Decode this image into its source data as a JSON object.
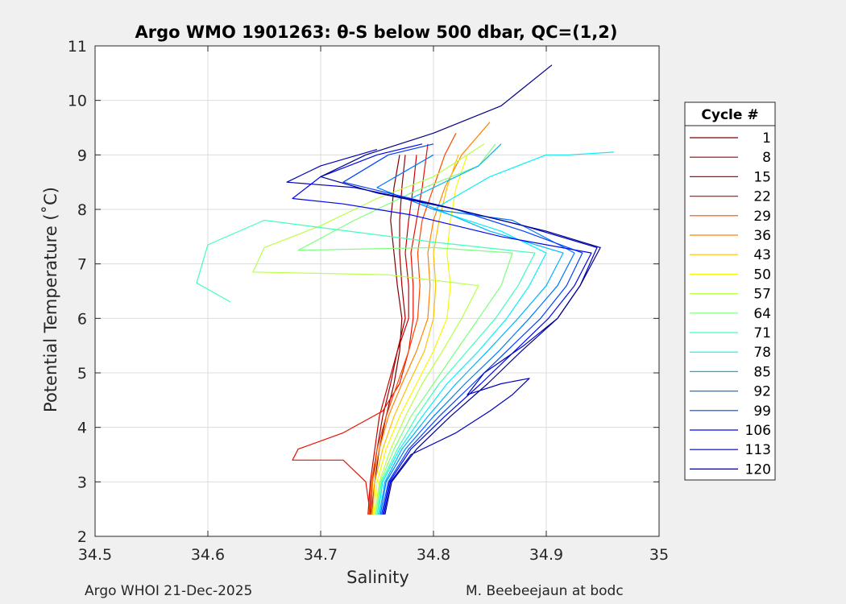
{
  "chart_data": {
    "type": "line",
    "title": "Argo WMO 1901263: θ-S below 500 dbar,  QC=(1,2)",
    "xlabel": "Salinity",
    "ylabel": "Potential Temperature (˚C)",
    "xlim": [
      34.5,
      35
    ],
    "ylim": [
      2,
      11
    ],
    "xticks": [
      "34.5",
      "34.6",
      "34.7",
      "34.8",
      "34.9",
      "35"
    ],
    "yticks": [
      "2",
      "3",
      "4",
      "5",
      "6",
      "7",
      "8",
      "9",
      "10",
      "11"
    ],
    "grid": true,
    "legend": {
      "title": "Cycle #",
      "placement": "right",
      "entries": [
        "1",
        "8",
        "15",
        "22",
        "29",
        "36",
        "43",
        "50",
        "57",
        "64",
        "71",
        "78",
        "85",
        "92",
        "99",
        "106",
        "113",
        "120"
      ],
      "colors": [
        "#800000",
        "#a00000",
        "#c80000",
        "#e81000",
        "#ff4800",
        "#ff8400",
        "#ffc000",
        "#f8f800",
        "#b8ff48",
        "#7cff7c",
        "#40ffb8",
        "#08f0f8",
        "#00b4ff",
        "#0078ff",
        "#0040ff",
        "#0008f0",
        "#0000c0",
        "#000088"
      ]
    },
    "series": [
      {
        "cycle": "1",
        "points": [
          [
            34.745,
            2.4
          ],
          [
            34.748,
            3.0
          ],
          [
            34.752,
            3.6
          ],
          [
            34.758,
            4.2
          ],
          [
            34.765,
            4.8
          ],
          [
            34.77,
            5.4
          ],
          [
            34.772,
            6.0
          ],
          [
            34.768,
            6.6
          ],
          [
            34.765,
            7.2
          ],
          [
            34.762,
            7.8
          ],
          [
            34.765,
            8.4
          ],
          [
            34.77,
            9.0
          ]
        ]
      },
      {
        "cycle": "8",
        "points": [
          [
            34.744,
            2.4
          ],
          [
            34.746,
            3.0
          ],
          [
            34.75,
            3.6
          ],
          [
            34.755,
            4.2
          ],
          [
            34.762,
            4.8
          ],
          [
            34.768,
            5.4
          ],
          [
            34.775,
            6.0
          ],
          [
            34.772,
            6.6
          ],
          [
            34.77,
            7.2
          ],
          [
            34.77,
            7.8
          ],
          [
            34.772,
            8.4
          ],
          [
            34.775,
            9.0
          ]
        ]
      },
      {
        "cycle": "15",
        "points": [
          [
            34.742,
            2.4
          ],
          [
            34.744,
            3.0
          ],
          [
            34.748,
            3.6
          ],
          [
            34.752,
            4.2
          ],
          [
            34.76,
            4.8
          ],
          [
            34.768,
            5.4
          ],
          [
            34.778,
            6.0
          ],
          [
            34.778,
            6.6
          ],
          [
            34.775,
            7.2
          ],
          [
            34.778,
            7.8
          ],
          [
            34.782,
            8.4
          ],
          [
            34.785,
            9.0
          ]
        ]
      },
      {
        "cycle": "22",
        "points": [
          [
            34.744,
            2.4
          ],
          [
            34.74,
            3.0
          ],
          [
            34.72,
            3.4
          ],
          [
            34.675,
            3.4
          ],
          [
            34.68,
            3.6
          ],
          [
            34.72,
            3.9
          ],
          [
            34.755,
            4.3
          ],
          [
            34.77,
            4.8
          ],
          [
            34.778,
            5.4
          ],
          [
            34.782,
            6.0
          ],
          [
            34.782,
            6.6
          ],
          [
            34.78,
            7.2
          ],
          [
            34.785,
            7.8
          ],
          [
            34.79,
            8.4
          ],
          [
            34.795,
            9.2
          ]
        ]
      },
      {
        "cycle": "29",
        "points": [
          [
            34.743,
            2.4
          ],
          [
            34.745,
            3.0
          ],
          [
            34.75,
            3.6
          ],
          [
            34.758,
            4.2
          ],
          [
            34.768,
            4.8
          ],
          [
            34.778,
            5.4
          ],
          [
            34.786,
            6.0
          ],
          [
            34.788,
            6.6
          ],
          [
            34.786,
            7.2
          ],
          [
            34.79,
            7.8
          ],
          [
            34.8,
            8.4
          ],
          [
            34.81,
            9.0
          ],
          [
            34.82,
            9.4
          ]
        ]
      },
      {
        "cycle": "36",
        "points": [
          [
            34.745,
            2.4
          ],
          [
            34.746,
            3.0
          ],
          [
            34.752,
            3.6
          ],
          [
            34.76,
            4.2
          ],
          [
            34.772,
            4.8
          ],
          [
            34.785,
            5.4
          ],
          [
            34.795,
            6.0
          ],
          [
            34.797,
            6.6
          ],
          [
            34.795,
            7.2
          ],
          [
            34.8,
            7.8
          ],
          [
            34.81,
            8.4
          ],
          [
            34.825,
            9.0
          ],
          [
            34.85,
            9.6
          ]
        ]
      },
      {
        "cycle": "43",
        "points": [
          [
            34.746,
            2.4
          ],
          [
            34.748,
            3.0
          ],
          [
            34.755,
            3.6
          ],
          [
            34.765,
            4.2
          ],
          [
            34.778,
            4.8
          ],
          [
            34.792,
            5.4
          ],
          [
            34.8,
            6.0
          ],
          [
            34.802,
            6.6
          ],
          [
            34.8,
            7.2
          ],
          [
            34.805,
            7.8
          ],
          [
            34.812,
            8.4
          ],
          [
            34.822,
            9.0
          ]
        ]
      },
      {
        "cycle": "50",
        "points": [
          [
            34.747,
            2.4
          ],
          [
            34.75,
            3.0
          ],
          [
            34.758,
            3.6
          ],
          [
            34.77,
            4.2
          ],
          [
            34.785,
            4.8
          ],
          [
            34.8,
            5.4
          ],
          [
            34.812,
            6.0
          ],
          [
            34.815,
            6.6
          ],
          [
            34.812,
            7.2
          ],
          [
            34.815,
            7.8
          ],
          [
            34.82,
            8.4
          ],
          [
            34.83,
            9.0
          ]
        ]
      },
      {
        "cycle": "57",
        "points": [
          [
            34.748,
            2.4
          ],
          [
            34.752,
            3.0
          ],
          [
            34.762,
            3.6
          ],
          [
            34.775,
            4.2
          ],
          [
            34.79,
            4.8
          ],
          [
            34.808,
            5.4
          ],
          [
            34.825,
            6.0
          ],
          [
            34.84,
            6.6
          ],
          [
            34.76,
            6.8
          ],
          [
            34.64,
            6.85
          ],
          [
            34.65,
            7.3
          ],
          [
            34.7,
            7.7
          ],
          [
            34.75,
            8.2
          ],
          [
            34.8,
            8.6
          ],
          [
            34.845,
            9.2
          ]
        ]
      },
      {
        "cycle": "64",
        "points": [
          [
            34.749,
            2.4
          ],
          [
            34.753,
            3.0
          ],
          [
            34.765,
            3.6
          ],
          [
            34.78,
            4.2
          ],
          [
            34.8,
            4.8
          ],
          [
            34.82,
            5.4
          ],
          [
            34.84,
            6.0
          ],
          [
            34.86,
            6.6
          ],
          [
            34.87,
            7.2
          ],
          [
            34.8,
            7.3
          ],
          [
            34.68,
            7.25
          ],
          [
            34.73,
            7.8
          ],
          [
            34.78,
            8.3
          ],
          [
            34.84,
            8.8
          ],
          [
            34.855,
            9.2
          ]
        ]
      },
      {
        "cycle": "71",
        "points": [
          [
            34.75,
            2.4
          ],
          [
            34.754,
            3.0
          ],
          [
            34.768,
            3.6
          ],
          [
            34.785,
            4.2
          ],
          [
            34.805,
            4.8
          ],
          [
            34.83,
            5.4
          ],
          [
            34.855,
            6.0
          ],
          [
            34.875,
            6.6
          ],
          [
            34.89,
            7.2
          ],
          [
            34.8,
            7.4
          ],
          [
            34.65,
            7.8
          ],
          [
            34.6,
            7.35
          ],
          [
            34.59,
            6.65
          ],
          [
            34.62,
            6.3
          ]
        ]
      },
      {
        "cycle": "78",
        "points": [
          [
            34.751,
            2.4
          ],
          [
            34.755,
            3.0
          ],
          [
            34.77,
            3.6
          ],
          [
            34.79,
            4.2
          ],
          [
            34.812,
            4.8
          ],
          [
            34.84,
            5.4
          ],
          [
            34.865,
            6.0
          ],
          [
            34.885,
            6.6
          ],
          [
            34.9,
            7.2
          ],
          [
            34.86,
            7.6
          ],
          [
            34.8,
            8.0
          ],
          [
            34.85,
            8.6
          ],
          [
            34.9,
            9.0
          ],
          [
            34.92,
            9.0
          ],
          [
            34.96,
            9.05
          ]
        ]
      },
      {
        "cycle": "85",
        "points": [
          [
            34.752,
            2.4
          ],
          [
            34.757,
            3.0
          ],
          [
            34.772,
            3.6
          ],
          [
            34.795,
            4.2
          ],
          [
            34.82,
            4.8
          ],
          [
            34.848,
            5.4
          ],
          [
            34.875,
            6.0
          ],
          [
            34.9,
            6.6
          ],
          [
            34.915,
            7.2
          ],
          [
            34.85,
            7.6
          ],
          [
            34.78,
            8.2
          ],
          [
            34.84,
            8.8
          ],
          [
            34.86,
            9.2
          ]
        ]
      },
      {
        "cycle": "92",
        "points": [
          [
            34.753,
            2.4
          ],
          [
            34.758,
            3.0
          ],
          [
            34.775,
            3.6
          ],
          [
            34.8,
            4.2
          ],
          [
            34.828,
            4.8
          ],
          [
            34.858,
            5.4
          ],
          [
            34.885,
            6.0
          ],
          [
            34.91,
            6.6
          ],
          [
            34.925,
            7.2
          ],
          [
            34.87,
            7.8
          ],
          [
            34.8,
            8.0
          ],
          [
            34.75,
            8.4
          ],
          [
            34.8,
            9.0
          ]
        ]
      },
      {
        "cycle": "99",
        "points": [
          [
            34.754,
            2.4
          ],
          [
            34.76,
            3.0
          ],
          [
            34.778,
            3.6
          ],
          [
            34.805,
            4.2
          ],
          [
            34.835,
            4.8
          ],
          [
            34.865,
            5.4
          ],
          [
            34.895,
            6.0
          ],
          [
            34.918,
            6.6
          ],
          [
            34.932,
            7.2
          ],
          [
            34.88,
            7.6
          ],
          [
            34.82,
            8.0
          ],
          [
            34.76,
            8.3
          ],
          [
            34.72,
            8.5
          ],
          [
            34.76,
            9.0
          ],
          [
            34.8,
            9.2
          ]
        ]
      },
      {
        "cycle": "106",
        "points": [
          [
            34.755,
            2.4
          ],
          [
            34.761,
            3.0
          ],
          [
            34.78,
            3.6
          ],
          [
            34.81,
            4.2
          ],
          [
            34.842,
            4.8
          ],
          [
            34.872,
            5.4
          ],
          [
            34.902,
            6.0
          ],
          [
            34.925,
            6.6
          ],
          [
            34.94,
            7.2
          ],
          [
            34.86,
            7.5
          ],
          [
            34.78,
            7.9
          ],
          [
            34.72,
            8.1
          ],
          [
            34.675,
            8.2
          ],
          [
            34.7,
            8.6
          ],
          [
            34.75,
            9.0
          ],
          [
            34.79,
            9.2
          ]
        ]
      },
      {
        "cycle": "113",
        "points": [
          [
            34.756,
            2.4
          ],
          [
            34.762,
            3.0
          ],
          [
            34.78,
            3.5
          ],
          [
            34.82,
            3.9
          ],
          [
            34.85,
            4.3
          ],
          [
            34.87,
            4.6
          ],
          [
            34.885,
            4.9
          ],
          [
            34.86,
            4.8
          ],
          [
            34.83,
            4.6
          ],
          [
            34.845,
            5.0
          ],
          [
            34.88,
            5.5
          ],
          [
            34.91,
            6.0
          ],
          [
            34.93,
            6.6
          ],
          [
            34.945,
            7.3
          ],
          [
            34.88,
            7.7
          ],
          [
            34.8,
            8.1
          ],
          [
            34.73,
            8.4
          ],
          [
            34.67,
            8.5
          ],
          [
            34.7,
            8.8
          ],
          [
            34.75,
            9.1
          ]
        ]
      },
      {
        "cycle": "120",
        "points": [
          [
            34.757,
            2.4
          ],
          [
            34.763,
            3.0
          ],
          [
            34.785,
            3.6
          ],
          [
            34.815,
            4.2
          ],
          [
            34.848,
            4.8
          ],
          [
            34.878,
            5.4
          ],
          [
            34.91,
            6.0
          ],
          [
            34.93,
            6.6
          ],
          [
            34.948,
            7.3
          ],
          [
            34.9,
            7.6
          ],
          [
            34.82,
            8.0
          ],
          [
            34.75,
            8.3
          ],
          [
            34.7,
            8.6
          ],
          [
            34.74,
            9.0
          ],
          [
            34.8,
            9.4
          ],
          [
            34.86,
            9.9
          ],
          [
            34.905,
            10.65
          ]
        ]
      }
    ]
  },
  "footer": {
    "left": "Argo WHOI 21-Dec-2025",
    "right": "M. Beebeejaun at bodc"
  }
}
